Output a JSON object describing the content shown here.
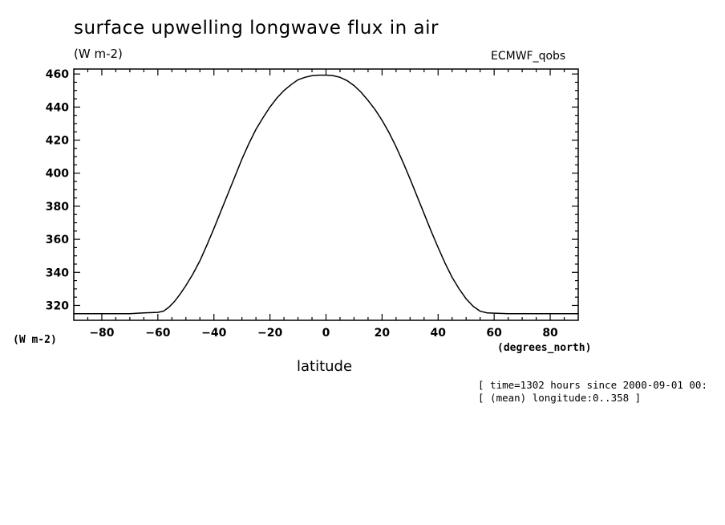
{
  "title": "surface upwelling longwave flux in air",
  "units_top": "(W m-2)",
  "source": "ECMWF_qobs",
  "units_left": "(W m-2)",
  "x_units": "(degrees_north)",
  "x_label": "latitude",
  "notes": [
    "[ time=1302 hours since 2000-09-01 00:",
    "[ (mean) longitude:0..358 ]"
  ],
  "chart_data": {
    "type": "line",
    "xlabel": "latitude",
    "ylabel": "(W m-2)",
    "xlim": [
      -90,
      90
    ],
    "ylim": [
      311,
      463
    ],
    "xticks": [
      -80,
      -60,
      -40,
      -20,
      0,
      20,
      40,
      60,
      80
    ],
    "yticks": [
      320,
      340,
      360,
      380,
      400,
      420,
      440,
      460
    ],
    "grid": false,
    "series": [
      {
        "x": [
          -90,
          -85,
          -80,
          -75,
          -70,
          -65,
          -60,
          -58,
          -56,
          -54,
          -52,
          -50,
          -47.5,
          -45,
          -42.5,
          -40,
          -37.5,
          -35,
          -32.5,
          -30,
          -27.5,
          -25,
          -22.5,
          -20,
          -17.5,
          -15,
          -12.5,
          -10,
          -7.5,
          -5,
          -2.5,
          0,
          2.5,
          5,
          7.5,
          10,
          12.5,
          15,
          17.5,
          20,
          22.5,
          25,
          27.5,
          30,
          32.5,
          35,
          37.5,
          40,
          42.5,
          45,
          47.5,
          50,
          52.5,
          55,
          57.5,
          60,
          65,
          70,
          75,
          80,
          85,
          90
        ],
        "values": [
          315,
          315,
          315,
          315,
          315,
          315.5,
          315.8,
          316.5,
          319,
          322.5,
          327,
          332,
          339,
          347,
          356.5,
          366.5,
          377,
          387.5,
          398,
          408.5,
          418,
          426.5,
          433.5,
          440,
          445.5,
          450,
          453.5,
          456.5,
          458,
          459,
          459.3,
          459.3,
          459,
          458,
          456,
          453,
          449,
          444,
          438.5,
          432,
          424.5,
          416,
          406.5,
          396.5,
          386,
          375.5,
          365,
          355,
          345.5,
          337,
          330,
          324,
          319.5,
          316.5,
          315.5,
          315.3,
          315,
          315,
          315,
          315,
          315,
          315
        ]
      }
    ]
  }
}
